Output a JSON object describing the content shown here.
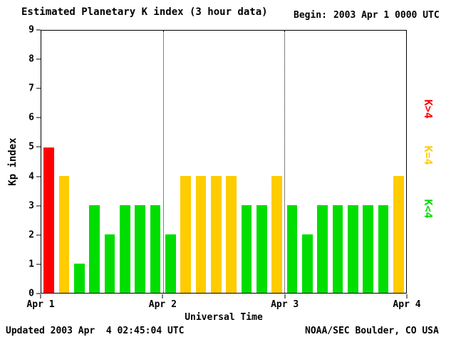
{
  "header": {
    "title": "Estimated Planetary K index (3 hour data)",
    "begin_label": "Begin:",
    "begin_value": "2003 Apr 1 0000 UTC"
  },
  "footer": {
    "updated": "Updated 2003 Apr  4 02:45:04 UTC",
    "source": "NOAA/SEC Boulder, CO USA"
  },
  "legend": [
    {
      "label": "K>4",
      "color": "#ff0000"
    },
    {
      "label": "K=4",
      "color": "#ffcc00"
    },
    {
      "label": "K<4",
      "color": "#00dd00"
    }
  ],
  "chart_data": {
    "type": "bar",
    "title": "Estimated Planetary K index (3 hour data)",
    "xlabel": "Universal Time",
    "ylabel": "Kp index",
    "ylim": [
      0,
      9
    ],
    "yticks": [
      0,
      1,
      2,
      3,
      4,
      5,
      6,
      7,
      8,
      9
    ],
    "xticklabels": [
      "Apr 1",
      "Apr 2",
      "Apr 3",
      "Apr 4"
    ],
    "interval_hours": 3,
    "bars_per_day": 8,
    "values": [
      5,
      4,
      1,
      3,
      2,
      3,
      3,
      3,
      2,
      4,
      4,
      4,
      4,
      3,
      3,
      4,
      3,
      2,
      3,
      3,
      3,
      3,
      3,
      4
    ],
    "colors": {
      "gt4": "#ff0000",
      "eq4": "#ffcc00",
      "lt4": "#00dd00"
    },
    "grid": "dotted vertical lines at interior day boundaries",
    "legend_position": "right",
    "begin": "2003 Apr 1 0000 UTC"
  }
}
